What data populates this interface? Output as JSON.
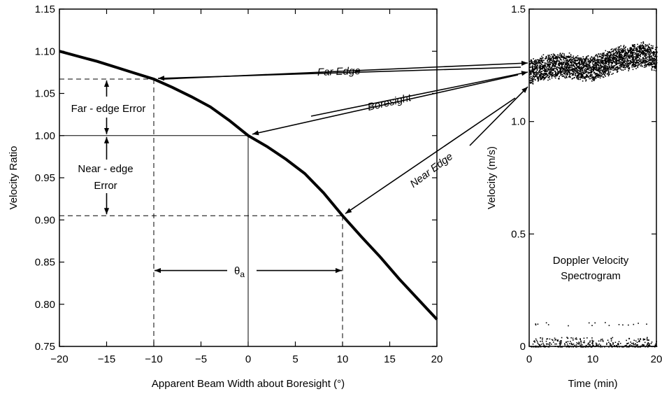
{
  "chart_data": [
    {
      "type": "line",
      "xlabel": "Apparent Beam Width about Boresight (°)",
      "ylabel": "Velocity Ratio",
      "xlim": [
        -20,
        20
      ],
      "ylim": [
        0.75,
        1.15
      ],
      "x_ticks": [
        -20,
        -15,
        -10,
        -5,
        0,
        5,
        10,
        15,
        20
      ],
      "x_tick_labels": [
        "−20",
        "−15",
        "−10",
        "−5",
        "0",
        "5",
        "10",
        "15",
        "20"
      ],
      "y_ticks": [
        0.75,
        0.8,
        0.85,
        0.9,
        0.95,
        1.0,
        1.05,
        1.1,
        1.15
      ],
      "y_tick_labels": [
        "0.75",
        "0.80",
        "0.85",
        "0.90",
        "0.95",
        "1.00",
        "1.05",
        "1.10",
        "1.15"
      ],
      "grid": false,
      "series": [
        {
          "x": [
            -20,
            -18,
            -16,
            -14,
            -12,
            -10,
            -8,
            -6,
            -4,
            -2,
            0,
            2,
            4,
            6,
            8,
            10,
            12,
            14,
            16,
            18,
            20
          ],
          "y": [
            1.1,
            1.094,
            1.088,
            1.081,
            1.074,
            1.067,
            1.057,
            1.046,
            1.034,
            1.018,
            1.0,
            0.987,
            0.972,
            0.955,
            0.932,
            0.905,
            0.88,
            0.856,
            0.83,
            0.806,
            0.782
          ]
        }
      ],
      "reference_lines": {
        "far_edge": {
          "x": -10,
          "y": 1.067
        },
        "boresight": {
          "x": 0,
          "y": 1.0
        },
        "near_edge": {
          "x": 10,
          "y": 0.905
        },
        "theta_span": [
          -10,
          10
        ],
        "theta_y": 0.84
      },
      "annotations": {
        "far_edge_error": "Far - edge Error",
        "near_edge_error_1": "Near - edge",
        "near_edge_error_2": "Error",
        "theta": "θ",
        "theta_sub": "a",
        "far_edge": "Far Edge",
        "boresight": "Boresight",
        "near_edge": "Near Edge"
      }
    },
    {
      "type": "scatter",
      "xlabel": "Time (min)",
      "ylabel": "Velocity (m/s)",
      "xlim": [
        0,
        20
      ],
      "ylim": [
        0,
        1.5
      ],
      "x_ticks": [
        0,
        10,
        20
      ],
      "x_tick_labels": [
        "0",
        "10",
        "20"
      ],
      "y_ticks": [
        0,
        0.5,
        1.0,
        1.5
      ],
      "y_tick_labels": [
        "0",
        "0.5",
        "1.0",
        "1.5"
      ],
      "grid": false,
      "band_center": {
        "t": [
          0,
          2,
          4,
          6,
          8,
          10,
          12,
          14,
          16,
          18,
          20
        ],
        "v": [
          1.22,
          1.24,
          1.25,
          1.25,
          1.24,
          1.24,
          1.26,
          1.28,
          1.29,
          1.3,
          1.28
        ]
      },
      "band_half_width": 0.06,
      "noise_floor": [
        0,
        0.05
      ],
      "annotation_1": "Doppler Velocity",
      "annotation_2": "Spectrogram"
    }
  ]
}
